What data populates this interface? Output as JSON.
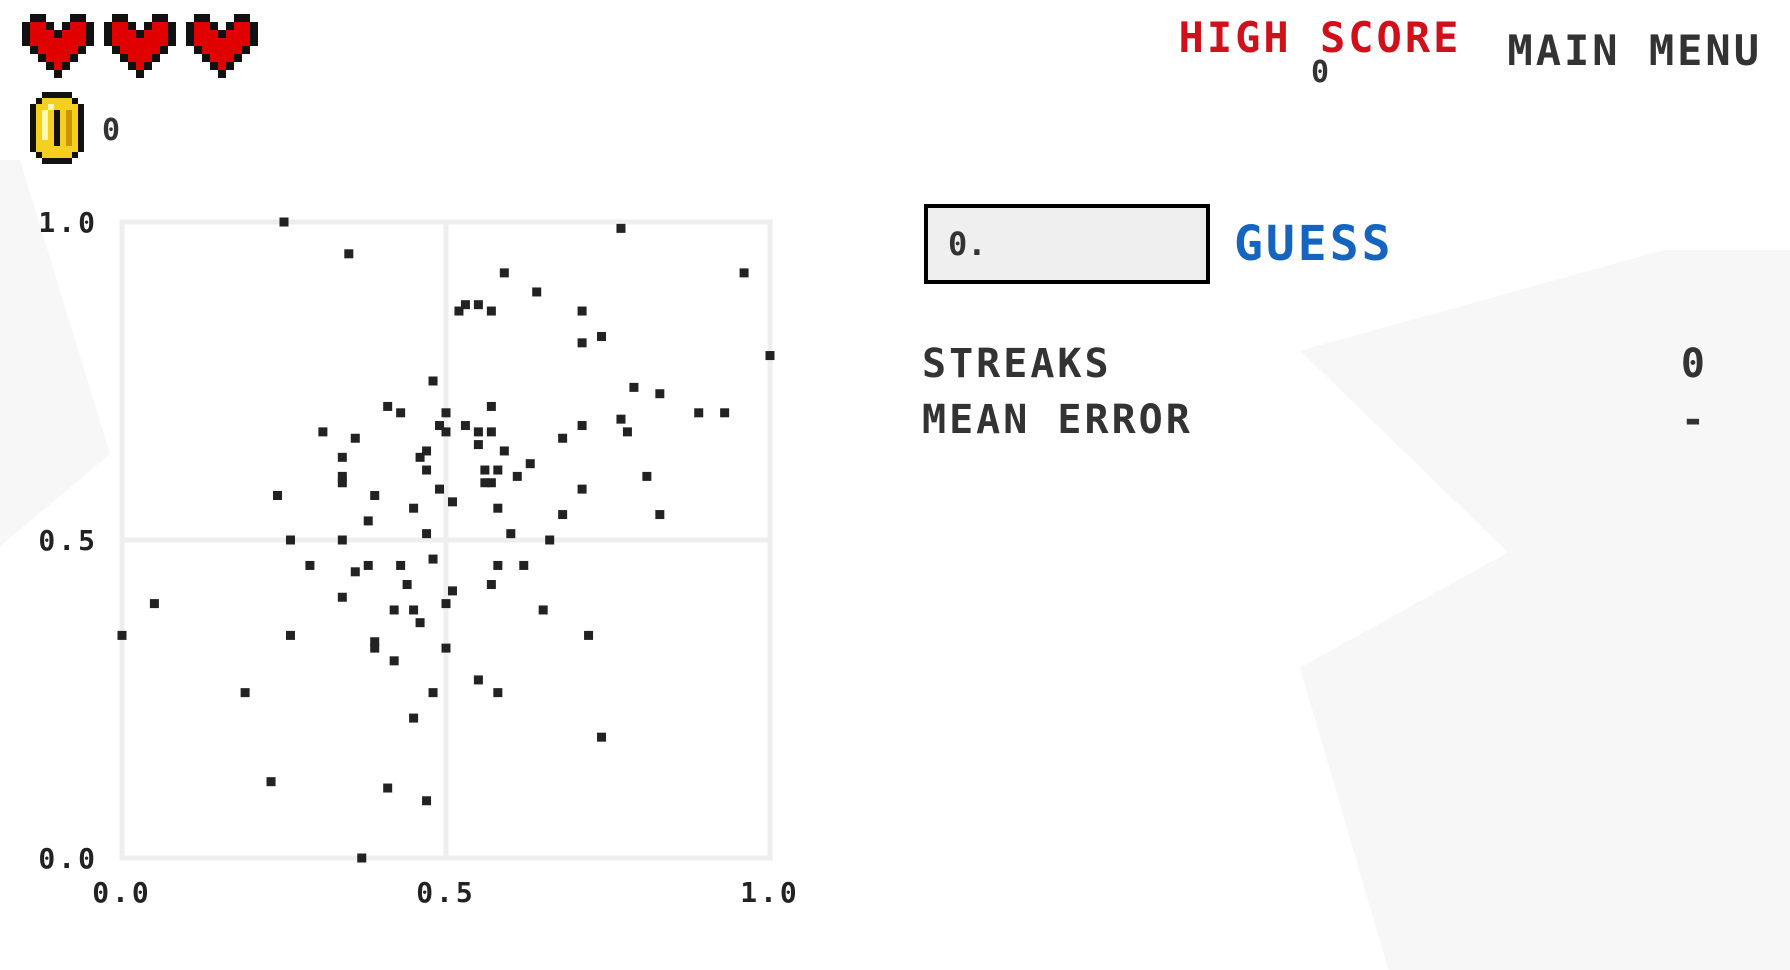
{
  "hud": {
    "hearts": 3,
    "heart_color": "#e00000",
    "coins": "0",
    "coin_color": "#f5d020"
  },
  "header": {
    "high_score_label": "HIGH SCORE",
    "high_score_value": "0",
    "high_score_color": "#d0101a",
    "main_menu_label": "MAIN MENU"
  },
  "guess": {
    "input_value": "0.",
    "button_label": "GUESS",
    "button_color": "#1565c0"
  },
  "stats": {
    "streaks_label": "STREAKS",
    "streaks_value": "0",
    "mean_error_label": "MEAN ERROR",
    "mean_error_value": "-"
  },
  "chart_data": {
    "type": "scatter",
    "title": "",
    "xlabel": "",
    "ylabel": "",
    "xlim": [
      0,
      1
    ],
    "ylim": [
      0,
      1
    ],
    "xticks": [
      "0.0",
      "0.5",
      "1.0"
    ],
    "yticks": [
      "0.0",
      "0.5",
      "1.0"
    ],
    "grid": true,
    "point_color": "#222222",
    "x": [
      0.25,
      0.35,
      0.77,
      0.96,
      0.59,
      0.64,
      0.53,
      0.55,
      0.57,
      0.52,
      0.71,
      0.74,
      0.71,
      1.0,
      0.48,
      0.79,
      0.83,
      0.41,
      0.43,
      0.57,
      0.5,
      0.53,
      0.55,
      0.5,
      0.49,
      0.57,
      0.31,
      0.36,
      0.68,
      0.71,
      0.77,
      0.78,
      0.89,
      0.93,
      0.47,
      0.55,
      0.59,
      0.34,
      0.46,
      0.63,
      0.34,
      0.47,
      0.56,
      0.58,
      0.57,
      0.61,
      0.81,
      0.34,
      0.56,
      0.71,
      0.24,
      0.39,
      0.49,
      0.51,
      0.45,
      0.58,
      0.68,
      0.38,
      0.26,
      0.34,
      0.47,
      0.6,
      0.66,
      0.83,
      0.29,
      0.38,
      0.36,
      0.43,
      0.48,
      0.58,
      0.62,
      0.44,
      0.57,
      0.51,
      0.34,
      0.05,
      0.42,
      0.46,
      0.45,
      0.5,
      0.65,
      0.0,
      0.26,
      0.39,
      0.39,
      0.42,
      0.5,
      0.72,
      0.19,
      0.48,
      0.55,
      0.58,
      0.45,
      0.74,
      0.23,
      0.41,
      0.47,
      0.37
    ],
    "y": [
      1.0,
      0.95,
      0.99,
      0.92,
      0.92,
      0.89,
      0.87,
      0.87,
      0.86,
      0.86,
      0.86,
      0.82,
      0.81,
      0.79,
      0.75,
      0.74,
      0.73,
      0.71,
      0.7,
      0.71,
      0.7,
      0.68,
      0.67,
      0.67,
      0.68,
      0.67,
      0.67,
      0.66,
      0.66,
      0.68,
      0.69,
      0.67,
      0.7,
      0.7,
      0.64,
      0.65,
      0.64,
      0.63,
      0.63,
      0.62,
      0.6,
      0.61,
      0.61,
      0.61,
      0.59,
      0.6,
      0.6,
      0.59,
      0.59,
      0.58,
      0.57,
      0.57,
      0.58,
      0.56,
      0.55,
      0.55,
      0.54,
      0.53,
      0.5,
      0.5,
      0.51,
      0.51,
      0.5,
      0.54,
      0.46,
      0.46,
      0.45,
      0.46,
      0.47,
      0.46,
      0.46,
      0.43,
      0.43,
      0.42,
      0.41,
      0.4,
      0.39,
      0.37,
      0.39,
      0.4,
      0.39,
      0.35,
      0.35,
      0.34,
      0.33,
      0.31,
      0.33,
      0.35,
      0.26,
      0.26,
      0.28,
      0.26,
      0.22,
      0.19,
      0.12,
      0.11,
      0.09,
      0.0
    ]
  }
}
